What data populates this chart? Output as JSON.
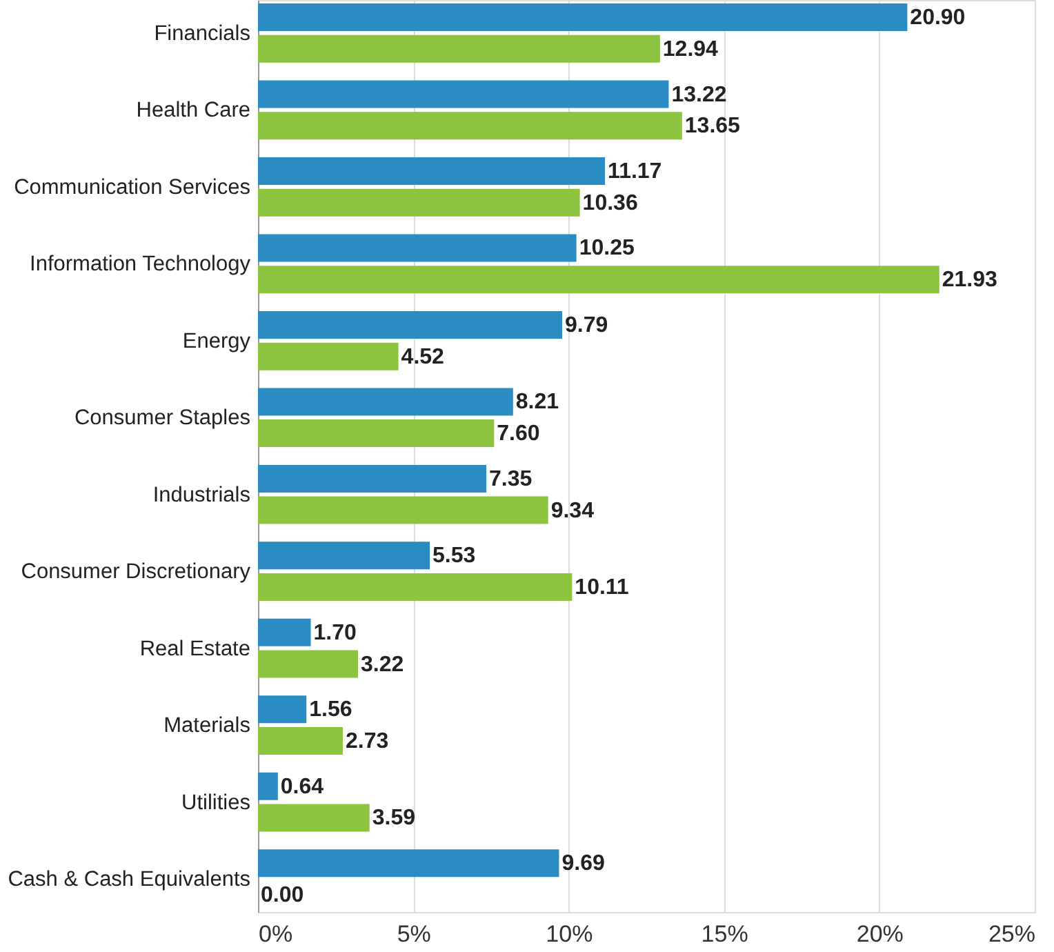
{
  "chart_data": {
    "type": "bar",
    "orientation": "horizontal",
    "categories": [
      "Financials",
      "Health Care",
      "Communication Services",
      "Information Technology",
      "Energy",
      "Consumer Staples",
      "Industrials",
      "Consumer Discretionary",
      "Real Estate",
      "Materials",
      "Utilities",
      "Cash & Cash Equivalents"
    ],
    "series": [
      {
        "color": "#2b8cc4",
        "values": [
          20.9,
          13.22,
          11.17,
          10.25,
          9.79,
          8.21,
          7.35,
          5.53,
          1.7,
          1.56,
          0.64,
          9.69
        ],
        "value_labels": [
          "20.90",
          "13.22",
          "11.17",
          "10.25",
          "9.79",
          "8.21",
          "7.35",
          "5.53",
          "1.70",
          "1.56",
          "0.64",
          "9.69"
        ]
      },
      {
        "color": "#8cc43f",
        "values": [
          12.94,
          13.65,
          10.36,
          21.93,
          4.52,
          7.6,
          9.34,
          10.11,
          3.22,
          2.73,
          3.59,
          0.0
        ],
        "value_labels": [
          "12.94",
          "13.65",
          "10.36",
          "21.93",
          "4.52",
          "7.60",
          "9.34",
          "10.11",
          "3.22",
          "2.73",
          "3.59",
          "0.00"
        ]
      }
    ],
    "xlim": [
      0,
      25
    ],
    "xticks": [
      {
        "value": 0,
        "label": "0%"
      },
      {
        "value": 5,
        "label": "5%"
      },
      {
        "value": 10,
        "label": "10%"
      },
      {
        "value": 15,
        "label": "15%"
      },
      {
        "value": 20,
        "label": "20%"
      },
      {
        "value": 25,
        "label": "25%"
      }
    ],
    "grid": "x",
    "legend": false
  }
}
